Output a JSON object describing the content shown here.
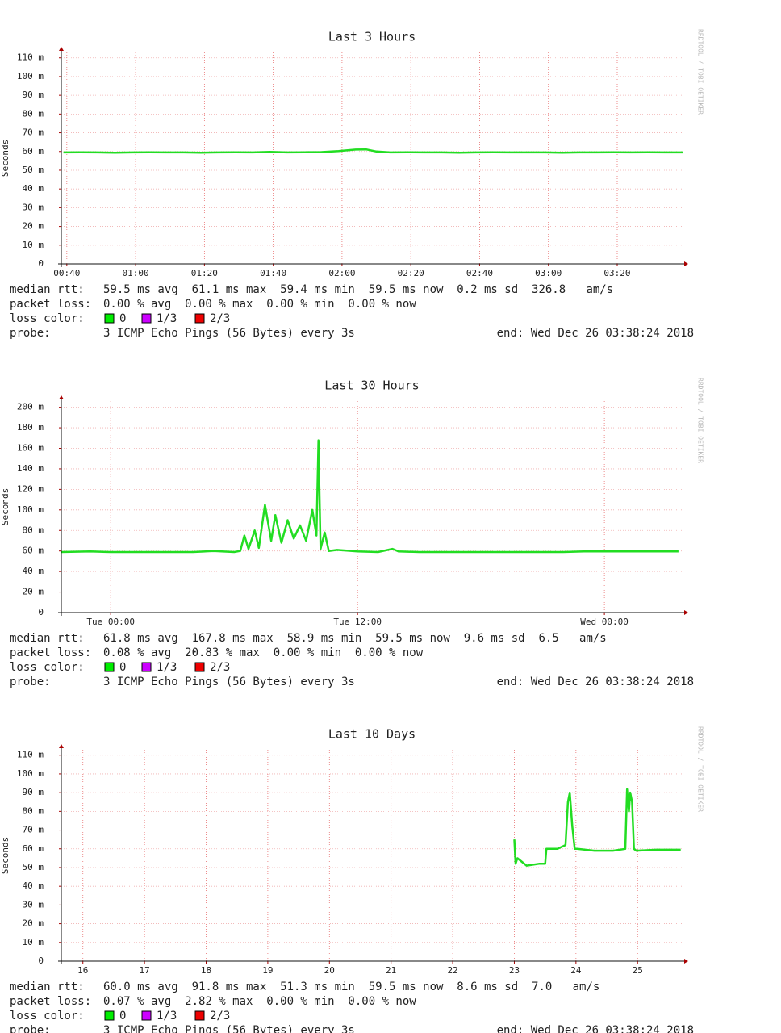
{
  "chart_data": [
    {
      "type": "line",
      "title": "Last 3 Hours",
      "y_label": "Seconds",
      "watermark": "RRDTOOL / TOBI OETIKER",
      "x": [
        39,
        44,
        49,
        54,
        59,
        64,
        69,
        74,
        79,
        84,
        89,
        94,
        99,
        104,
        109,
        114,
        119,
        124,
        127,
        130,
        134,
        139,
        144,
        149,
        154,
        159,
        164,
        169,
        174,
        179,
        184,
        189,
        194,
        199,
        204,
        209,
        214,
        219
      ],
      "values": [
        59.5,
        59.6,
        59.5,
        59.4,
        59.5,
        59.6,
        59.5,
        59.5,
        59.4,
        59.5,
        59.6,
        59.5,
        59.8,
        59.5,
        59.6,
        59.7,
        60.2,
        61,
        61.1,
        60,
        59.5,
        59.6,
        59.5,
        59.5,
        59.4,
        59.5,
        59.6,
        59.5,
        59.5,
        59.5,
        59.4,
        59.5,
        59.5,
        59.6,
        59.5,
        59.6,
        59.5,
        59.5
      ],
      "color": "#22dd22",
      "xlim": [
        38.4,
        219
      ],
      "xticks": [
        {
          "value": 40,
          "label": "00:40"
        },
        {
          "value": 60,
          "label": "01:00"
        },
        {
          "value": 80,
          "label": "01:20"
        },
        {
          "value": 100,
          "label": "01:40"
        },
        {
          "value": 120,
          "label": "02:00"
        },
        {
          "value": 140,
          "label": "02:20"
        },
        {
          "value": 160,
          "label": "02:40"
        },
        {
          "value": 180,
          "label": "03:00"
        },
        {
          "value": 200,
          "label": "03:20"
        }
      ],
      "ylim": [
        0,
        112.9
      ],
      "yticks": [
        0,
        {
          "value": 10,
          "label": "10 m"
        },
        {
          "value": 20,
          "label": "20 m"
        },
        {
          "value": 30,
          "label": "30 m"
        },
        {
          "value": 40,
          "label": "40 m"
        },
        {
          "value": 50,
          "label": "50 m"
        },
        {
          "value": 60,
          "label": "60 m"
        },
        {
          "value": 70,
          "label": "70 m"
        },
        {
          "value": 80,
          "label": "80 m"
        },
        {
          "value": 90,
          "label": "90 m"
        },
        {
          "value": 100,
          "label": "100 m"
        },
        {
          "value": 110,
          "label": "110 m"
        }
      ],
      "grid": true,
      "stats": {
        "median_rtt_label": "median rtt:",
        "median_rtt": "59.5 ms avg  61.1 ms max  59.4 ms min  59.5 ms now  0.2 ms sd  326.8   am/s",
        "packet_loss_label": "packet loss:",
        "packet_loss": "0.00 % avg  0.00 % max  0.00 % min  0.00 % now",
        "loss_color_label": "loss color:",
        "loss_colors": [
          {
            "label": "0",
            "color": "#00ee00"
          },
          {
            "label": "1/3",
            "color": "#cc00ff"
          },
          {
            "label": "2/3",
            "color": "#ee0000"
          }
        ],
        "probe_label": "probe:",
        "probe": "3 ICMP Echo Pings (56 Bytes) every 3s",
        "end": "end: Wed Dec 26 03:38:24 2018"
      }
    },
    {
      "type": "line",
      "title": "Last 30 Hours",
      "y_label": "Seconds",
      "watermark": "RRDTOOL / TOBI OETIKER",
      "x": [
        -2.4,
        -1,
        0,
        1,
        2,
        3,
        4,
        5,
        6,
        6.3,
        6.5,
        6.7,
        7,
        7.2,
        7.5,
        7.8,
        8,
        8.3,
        8.6,
        8.9,
        9.2,
        9.5,
        9.8,
        10,
        10.1,
        10.2,
        10.4,
        10.6,
        11,
        12,
        13,
        13.7,
        14,
        15,
        16,
        17,
        18,
        19,
        20,
        21,
        22,
        23,
        24,
        25,
        26,
        27,
        27.6
      ],
      "values": [
        59,
        59.5,
        59,
        59,
        59,
        59,
        59,
        60,
        59,
        60,
        75,
        62,
        80,
        63,
        105,
        70,
        95,
        68,
        90,
        72,
        85,
        70,
        100,
        75,
        167.8,
        62,
        78,
        60,
        61,
        59.5,
        59,
        62,
        59.5,
        59,
        59,
        59,
        59,
        59,
        59,
        59,
        59,
        59.5,
        59.5,
        59.5,
        59.5,
        59.5,
        59.5
      ],
      "color": "#22dd22",
      "xlim": [
        -2.4,
        27.8
      ],
      "xticks": [
        {
          "value": 0,
          "label": "Tue 00:00"
        },
        {
          "value": 12,
          "label": "Tue 12:00"
        },
        {
          "value": 24,
          "label": "Wed 00:00"
        }
      ],
      "ylim": [
        0,
        206
      ],
      "yticks": [
        0,
        {
          "value": 20,
          "label": "20 m"
        },
        {
          "value": 40,
          "label": "40 m"
        },
        {
          "value": 60,
          "label": "60 m"
        },
        {
          "value": 80,
          "label": "80 m"
        },
        {
          "value": 100,
          "label": "100 m"
        },
        {
          "value": 120,
          "label": "120 m"
        },
        {
          "value": 140,
          "label": "140 m"
        },
        {
          "value": 160,
          "label": "160 m"
        },
        {
          "value": 180,
          "label": "180 m"
        },
        {
          "value": 200,
          "label": "200 m"
        }
      ],
      "grid": true,
      "stats": {
        "median_rtt_label": "median rtt:",
        "median_rtt": "61.8 ms avg  167.8 ms max  58.9 ms min  59.5 ms now  9.6 ms sd  6.5   am/s",
        "packet_loss_label": "packet loss:",
        "packet_loss": "0.08 % avg  20.83 % max  0.00 % min  0.00 % now",
        "loss_color_label": "loss color:",
        "loss_colors": [
          {
            "label": "0",
            "color": "#00ee00"
          },
          {
            "label": "1/3",
            "color": "#cc00ff"
          },
          {
            "label": "2/3",
            "color": "#ee0000"
          }
        ],
        "probe_label": "probe:",
        "probe": "3 ICMP Echo Pings (56 Bytes) every 3s",
        "end": "end: Wed Dec 26 03:38:24 2018"
      }
    },
    {
      "type": "line",
      "title": "Last 10 Days",
      "y_label": "Seconds",
      "watermark": "RRDTOOL / TOBI OETIKER",
      "x": [
        23.0,
        23.02,
        23.05,
        23.2,
        23.4,
        23.5,
        23.52,
        23.7,
        23.83,
        23.87,
        23.9,
        23.94,
        23.98,
        24.02,
        24.3,
        24.6,
        24.8,
        24.83,
        24.86,
        24.88,
        24.91,
        24.94,
        24.98,
        25.3,
        25.7
      ],
      "values": [
        65,
        52,
        55,
        51,
        52,
        52,
        60,
        60,
        62,
        85,
        90,
        72,
        60,
        60,
        59,
        59,
        60,
        91.8,
        80,
        90,
        85,
        60,
        59,
        59.5,
        59.5
      ],
      "color": "#22dd22",
      "xlim": [
        15.65,
        25.73
      ],
      "xticks": [
        16,
        17,
        18,
        19,
        20,
        21,
        22,
        23,
        24,
        25
      ],
      "ylim": [
        0,
        112.9
      ],
      "yticks": [
        0,
        {
          "value": 10,
          "label": "10 m"
        },
        {
          "value": 20,
          "label": "20 m"
        },
        {
          "value": 30,
          "label": "30 m"
        },
        {
          "value": 40,
          "label": "40 m"
        },
        {
          "value": 50,
          "label": "50 m"
        },
        {
          "value": 60,
          "label": "60 m"
        },
        {
          "value": 70,
          "label": "70 m"
        },
        {
          "value": 80,
          "label": "80 m"
        },
        {
          "value": 90,
          "label": "90 m"
        },
        {
          "value": 100,
          "label": "100 m"
        },
        {
          "value": 110,
          "label": "110 m"
        }
      ],
      "grid": true,
      "stats": {
        "median_rtt_label": "median rtt:",
        "median_rtt": "60.0 ms avg  91.8 ms max  51.3 ms min  59.5 ms now  8.6 ms sd  7.0   am/s",
        "packet_loss_label": "packet loss:",
        "packet_loss": "0.07 % avg  2.82 % max  0.00 % min  0.00 % now",
        "loss_color_label": "loss color:",
        "loss_colors": [
          {
            "label": "0",
            "color": "#00ee00"
          },
          {
            "label": "1/3",
            "color": "#cc00ff"
          },
          {
            "label": "2/3",
            "color": "#ee0000"
          }
        ],
        "probe_label": "probe:",
        "probe": "3 ICMP Echo Pings (56 Bytes) every 3s",
        "end": "end: Wed Dec 26 03:38:24 2018"
      }
    }
  ]
}
